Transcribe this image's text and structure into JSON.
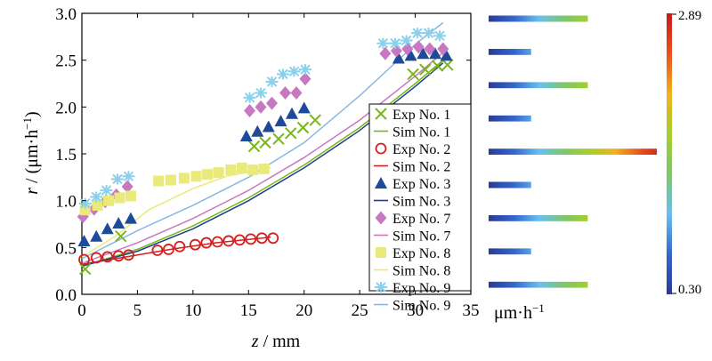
{
  "chart_data": {
    "type": "scatter",
    "xlabel": {
      "var": "z",
      "unit": " / mm"
    },
    "ylabel": {
      "var": "r",
      "unit_a": " / (μm·h",
      "unit_sup": "−1",
      "unit_b": ")"
    },
    "xlim": [
      0,
      35
    ],
    "ylim": [
      0,
      3.0
    ],
    "xticks": [
      "0",
      "5",
      "10",
      "15",
      "20",
      "25",
      "30",
      "35"
    ],
    "yticks": [
      "0.0",
      "0.5",
      "1.0",
      "1.5",
      "2.0",
      "2.5",
      "3.0"
    ],
    "grid": false,
    "legend_position": "bottom-right",
    "series": [
      {
        "name": "Exp No. 1",
        "kind": "scatter",
        "marker": "x",
        "color": "#7ab51d",
        "x": [
          0.3,
          3.5,
          15.5,
          16.5,
          17.7,
          18.8,
          19.9,
          21.0,
          29.8,
          30.9,
          32.0,
          32.9
        ],
        "y": [
          0.27,
          0.62,
          1.58,
          1.62,
          1.66,
          1.72,
          1.78,
          1.86,
          2.35,
          2.4,
          2.44,
          2.45
        ]
      },
      {
        "name": "Sim No. 1",
        "kind": "line",
        "color": "#7ab51d",
        "x": [
          0,
          5,
          10,
          15,
          20,
          25,
          30,
          32.5
        ],
        "y": [
          0.3,
          0.48,
          0.73,
          1.03,
          1.38,
          1.78,
          2.25,
          2.5
        ]
      },
      {
        "name": "Exp No. 2",
        "kind": "scatter",
        "marker": "o",
        "color": "#d42020",
        "x": [
          0.2,
          1.3,
          2.3,
          3.3,
          4.2,
          6.8,
          7.8,
          8.8,
          10.2,
          11.2,
          12.2,
          13.2,
          14.2,
          15.2,
          16.2,
          17.2
        ],
        "y": [
          0.37,
          0.39,
          0.4,
          0.41,
          0.42,
          0.47,
          0.48,
          0.51,
          0.53,
          0.55,
          0.56,
          0.57,
          0.58,
          0.59,
          0.6,
          0.6
        ]
      },
      {
        "name": "Sim No. 2",
        "kind": "line",
        "color": "#d42020",
        "x": [
          0,
          4,
          8,
          12,
          17
        ],
        "y": [
          0.32,
          0.4,
          0.48,
          0.55,
          0.61
        ]
      },
      {
        "name": "Exp No. 3",
        "kind": "scatter",
        "marker": "triangle",
        "color": "#1e4a9a",
        "x": [
          0.2,
          1.3,
          2.3,
          3.3,
          4.4,
          14.8,
          15.8,
          16.8,
          17.9,
          18.9,
          20.0,
          28.5,
          29.6,
          30.7,
          31.8,
          32.8
        ],
        "y": [
          0.57,
          0.62,
          0.7,
          0.76,
          0.81,
          1.69,
          1.74,
          1.79,
          1.85,
          1.93,
          1.99,
          2.52,
          2.55,
          2.57,
          2.57,
          2.55
        ]
      },
      {
        "name": "Sim No. 3",
        "kind": "line",
        "color": "#1e3f8a",
        "x": [
          0,
          5,
          10,
          15,
          20,
          25,
          30,
          32.5
        ],
        "y": [
          0.3,
          0.46,
          0.7,
          1.0,
          1.35,
          1.75,
          2.22,
          2.47
        ]
      },
      {
        "name": "Exp No. 7",
        "kind": "scatter",
        "marker": "diamond",
        "color": "#c878c0",
        "x": [
          0.1,
          1.1,
          2.1,
          3.1,
          4.1,
          15.1,
          16.1,
          17.1,
          18.3,
          19.3,
          20.1,
          27.3,
          28.3,
          29.3,
          30.3,
          31.3,
          32.5
        ],
        "y": [
          0.83,
          0.91,
          0.99,
          1.06,
          1.15,
          1.96,
          2.0,
          2.04,
          2.15,
          2.15,
          2.3,
          2.57,
          2.6,
          2.62,
          2.64,
          2.62,
          2.62
        ]
      },
      {
        "name": "Sim No. 7",
        "kind": "line",
        "color": "#c878c0",
        "x": [
          0,
          5,
          10,
          15,
          20,
          25,
          30,
          32.5
        ],
        "y": [
          0.33,
          0.55,
          0.81,
          1.11,
          1.46,
          1.86,
          2.33,
          2.58
        ]
      },
      {
        "name": "Exp No. 8",
        "kind": "scatter",
        "marker": "square",
        "color": "#e9ea7a",
        "x": [
          0.3,
          1.4,
          2.4,
          3.4,
          4.4,
          6.9,
          8.0,
          9.2,
          10.3,
          11.3,
          12.3,
          13.4,
          14.4,
          15.4,
          16.4
        ],
        "y": [
          0.9,
          0.95,
          1.0,
          1.03,
          1.05,
          1.21,
          1.22,
          1.24,
          1.26,
          1.28,
          1.3,
          1.33,
          1.35,
          1.33,
          1.34
        ]
      },
      {
        "name": "Sim No. 8",
        "kind": "line",
        "color": "#e9ea7a",
        "x": [
          0,
          3,
          6,
          10,
          13,
          17
        ],
        "y": [
          0.4,
          0.62,
          0.9,
          1.13,
          1.26,
          1.35
        ]
      },
      {
        "name": "Exp No. 9",
        "kind": "scatter",
        "marker": "asterisk",
        "color": "#8ad0ec",
        "x": [
          0.3,
          1.3,
          2.2,
          3.2,
          4.2,
          15.1,
          16.1,
          17.1,
          18.1,
          19.1,
          20.1,
          27.1,
          28.2,
          29.2,
          30.2,
          31.2,
          32.2
        ],
        "y": [
          0.97,
          1.04,
          1.11,
          1.23,
          1.26,
          2.1,
          2.15,
          2.27,
          2.35,
          2.38,
          2.4,
          2.68,
          2.68,
          2.71,
          2.79,
          2.79,
          2.76
        ]
      },
      {
        "name": "Sim No. 9",
        "kind": "line",
        "color": "#8ab8e0",
        "x": [
          0,
          5,
          10,
          15,
          20,
          25,
          30,
          32.5
        ],
        "y": [
          0.38,
          0.68,
          0.95,
          1.25,
          1.62,
          2.12,
          2.67,
          2.9
        ]
      }
    ],
    "bars_panel": {
      "rows": [
        0.56,
        0.24,
        0.56,
        0.24,
        0.95,
        0.24,
        0.56,
        0.24,
        0.56
      ],
      "colorbar": {
        "min_label": "0.30",
        "max_label": "2.89",
        "unit_a": "μm·h",
        "unit_sup": "−1",
        "stops": [
          "#2a3b93",
          "#3366cc",
          "#68c0ee",
          "#7fc66b",
          "#a5cf2a",
          "#f2b11c",
          "#e8501e",
          "#c81a1a"
        ]
      }
    }
  }
}
